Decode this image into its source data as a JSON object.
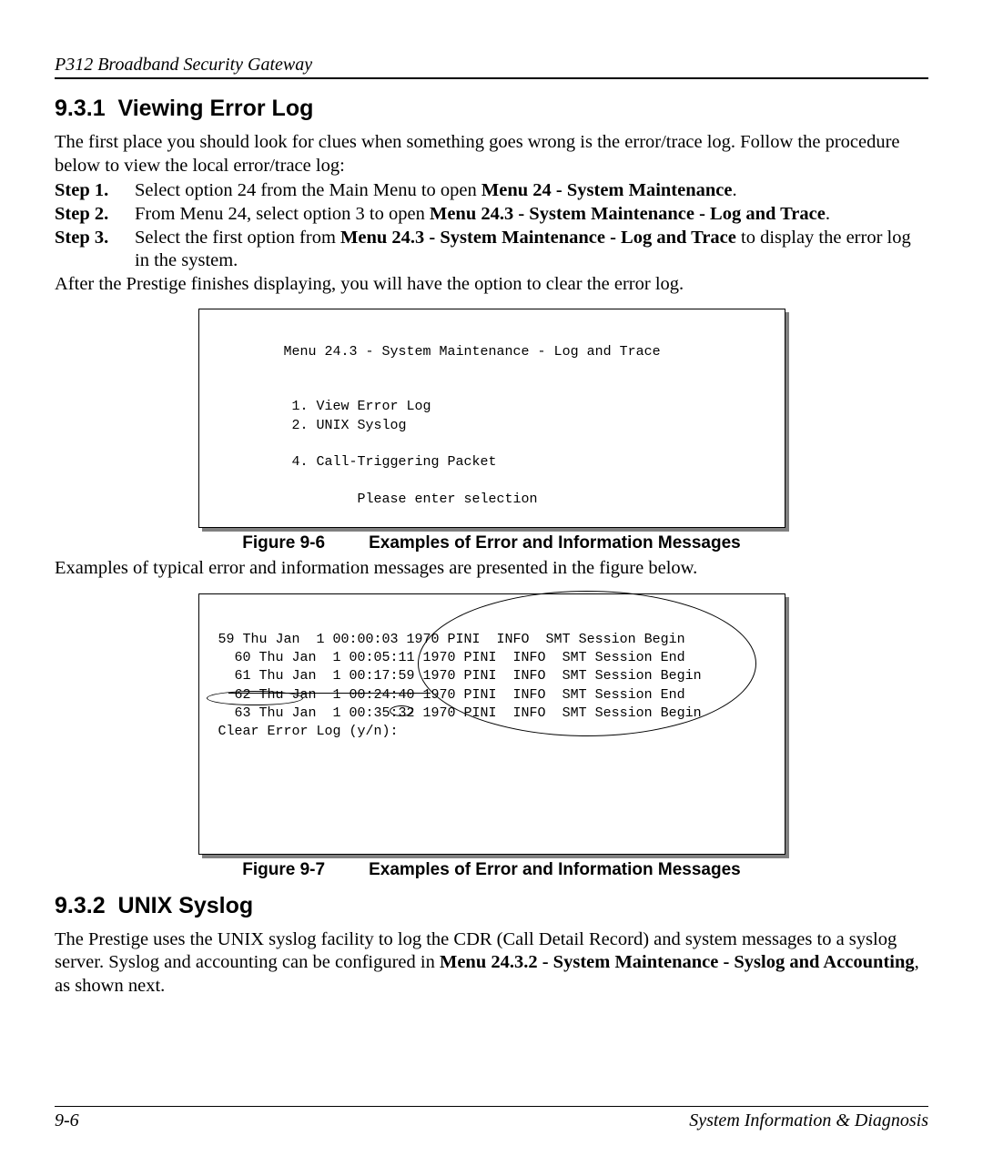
{
  "header": "P312  Broadband Security Gateway",
  "section1": {
    "number": "9.3.1",
    "title": "Viewing Error Log",
    "intro": "The first place you should look for clues when something goes wrong is the error/trace log. Follow the procedure below to view the local error/trace log:",
    "steps": [
      {
        "label": "Step 1.",
        "pre": "Select option 24 from the Main Menu to open ",
        "bold": "Menu 24 - System Maintenance",
        "post": "."
      },
      {
        "label": "Step 2.",
        "pre": "From Menu 24, select option 3 to open ",
        "bold": "Menu 24.3 - System Maintenance - Log and Trace",
        "post": "."
      },
      {
        "label": "Step 3.",
        "pre": "Select the first option from ",
        "bold": "Menu 24.3 - System Maintenance - Log and Trace",
        "post": " to display the error log in the system."
      }
    ],
    "after": " After the Prestige finishes displaying, you will have the option to clear the error log."
  },
  "fig6": {
    "menu_title": "         Menu 24.3 - System Maintenance - Log and Trace",
    "opt1": "          1. View Error Log",
    "opt2": "          2. UNIX Syslog",
    "opt4": "          4. Call-Triggering Packet",
    "prompt": "                  Please enter selection",
    "caption_label": "Figure 9-6",
    "caption_text": "Examples of Error and Information Messages"
  },
  "mid_text": "Examples of typical error and information messages are presented in the figure below.",
  "fig7": {
    "l1": " 59 Thu Jan  1 00:00:03 1970 PINI  INFO  SMT Session Begin",
    "l2": "   60 Thu Jan  1 00:05:11 1970 PINI  INFO  SMT Session End",
    "l3": "   61 Thu Jan  1 00:17:59 1970 PINI  INFO  SMT Session Begin",
    "l4": "   62 Thu Jan  1 00:24:40 1970 PINI  INFO  SMT Session End",
    "l5": "   63 Thu Jan  1 00:35:32 1970 PINI  INFO  SMT Session Begin",
    "l6": " Clear Error Log (y/n):",
    "caption_label": "Figure 9-7",
    "caption_text": "Examples of Error and Information Messages"
  },
  "section2": {
    "number": "9.3.2",
    "title": "UNIX Syslog",
    "p_pre": " The Prestige uses the UNIX syslog facility to log the CDR (Call Detail Record) and system messages to a syslog server. Syslog and accounting can be configured in ",
    "p_bold1": "Menu 24.3.2 - System Maintenance - Syslog and Accounting",
    "p_post": ", as shown next."
  },
  "footer": {
    "left": "9-6",
    "right": "System Information & Diagnosis"
  }
}
